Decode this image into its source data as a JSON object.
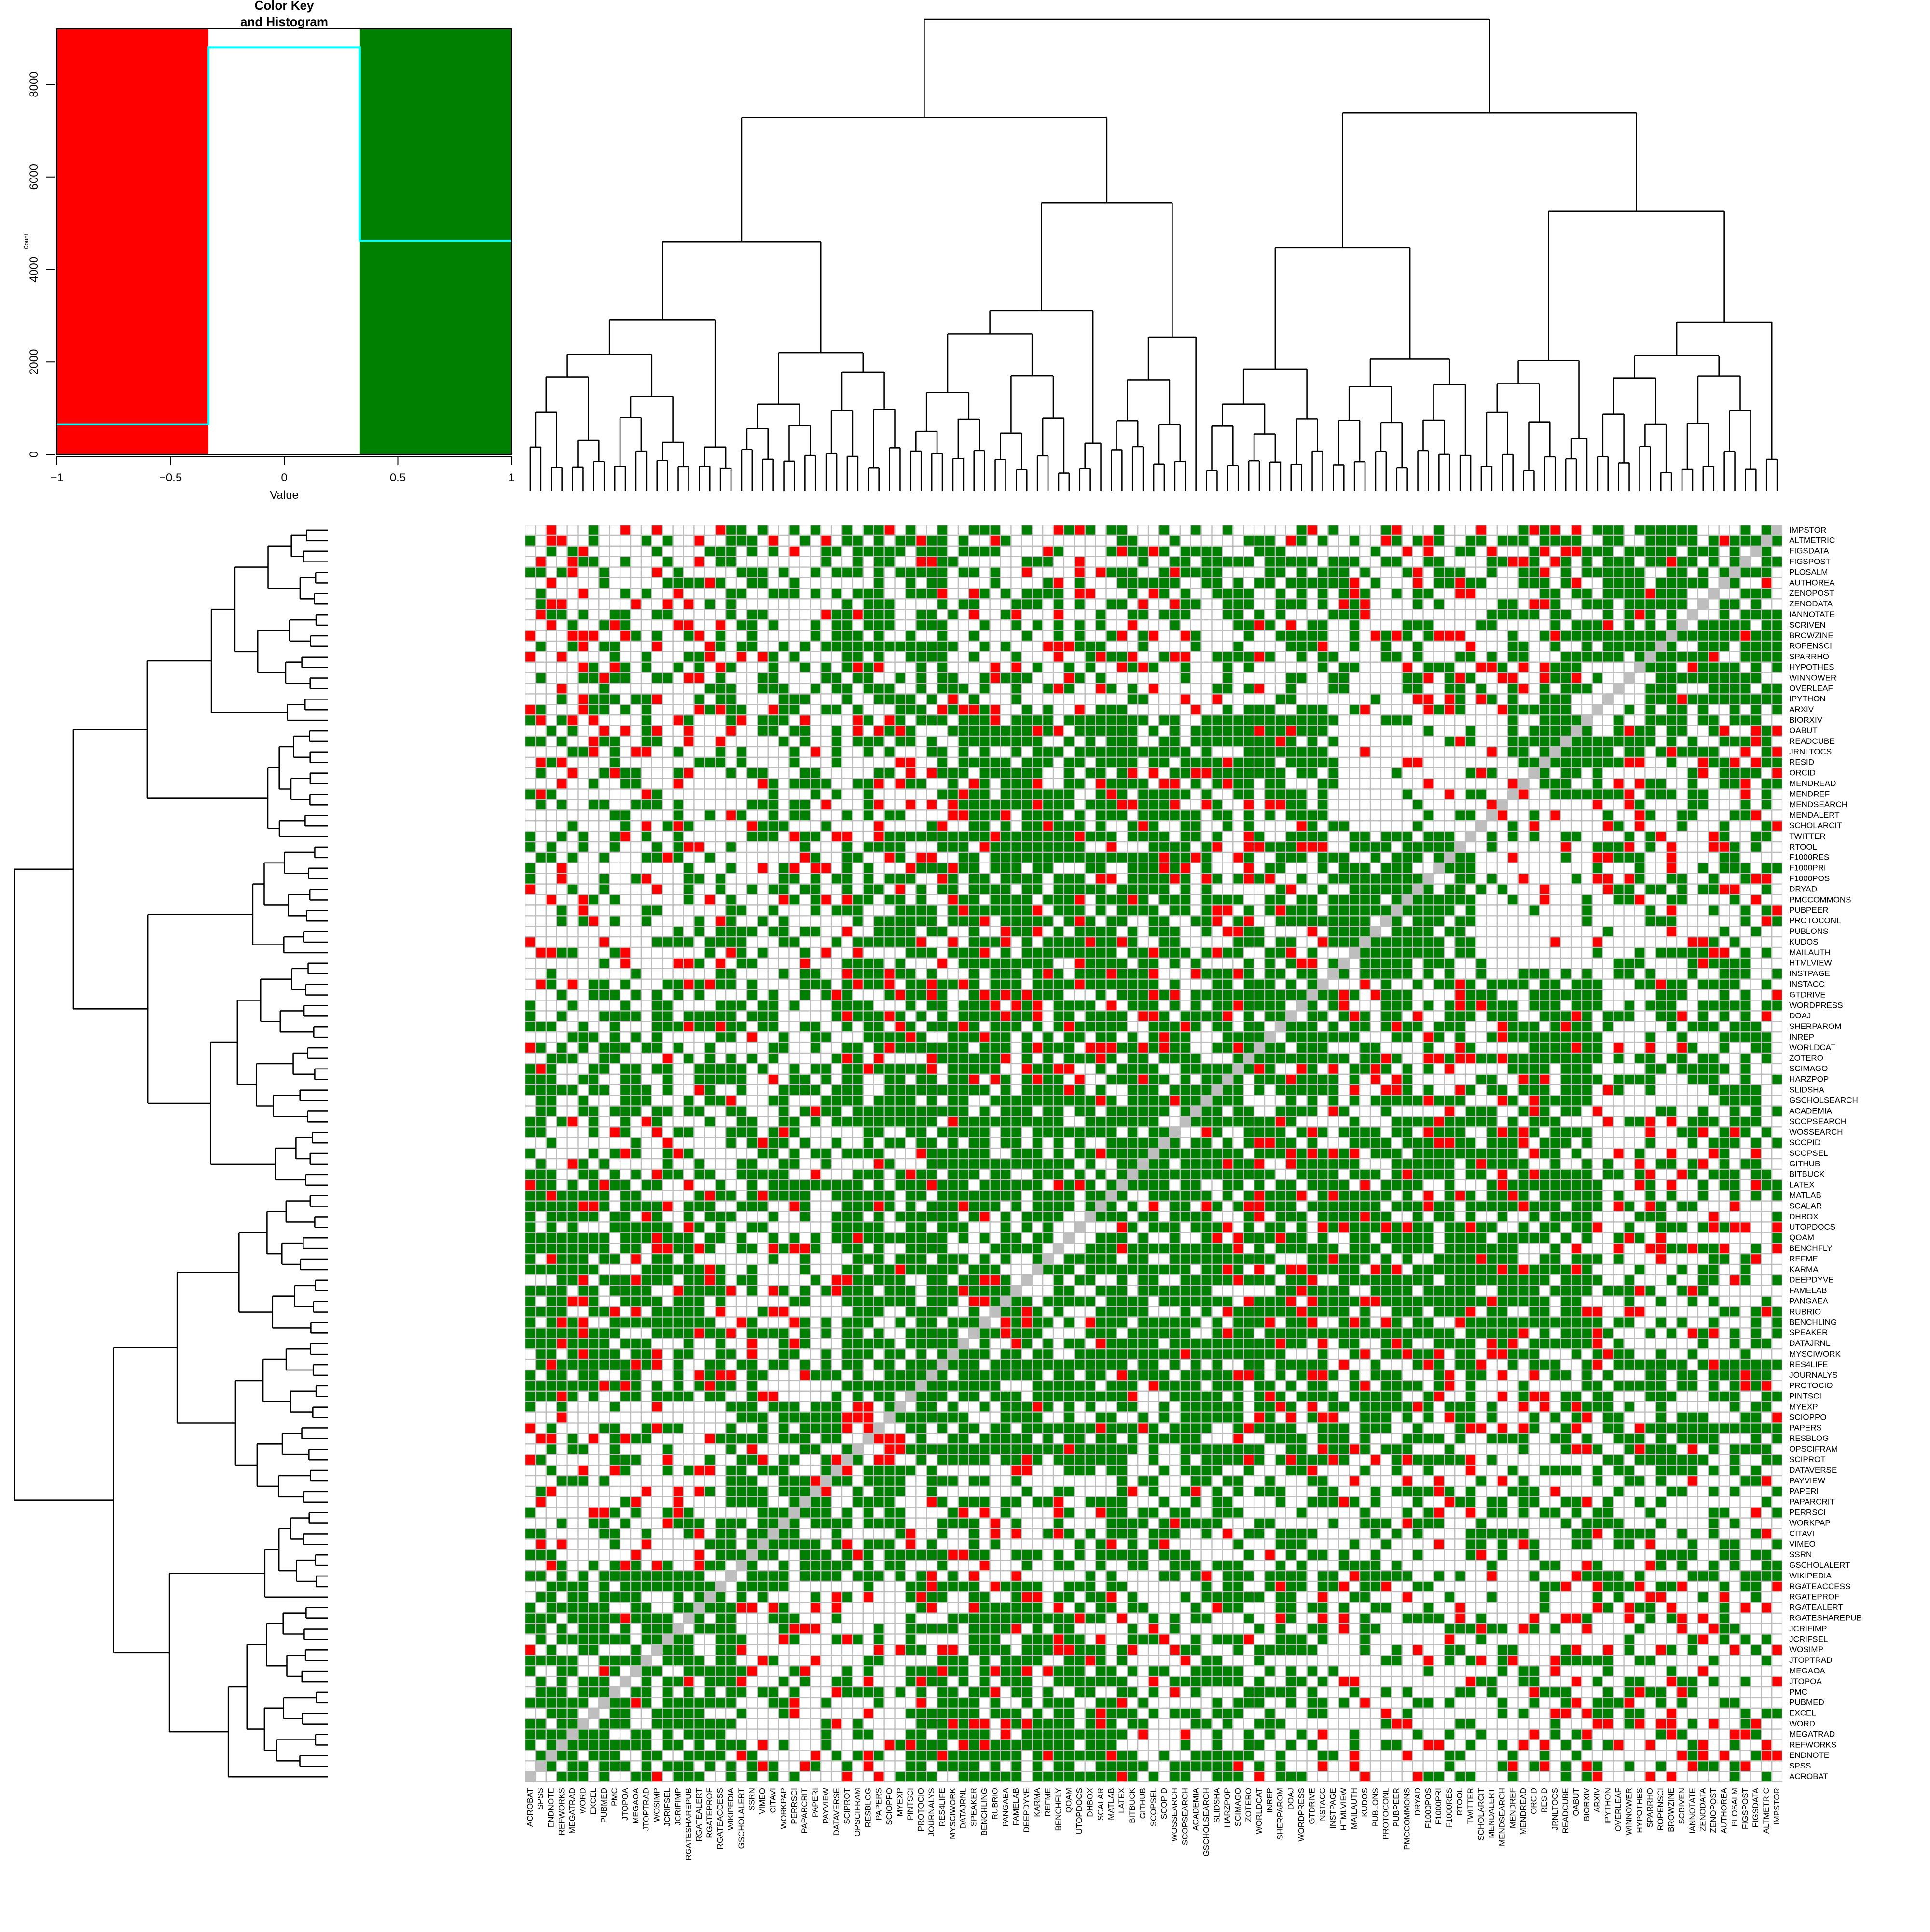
{
  "colors": {
    "negative": "#ff0000",
    "neutral": "#ffffff",
    "positive": "#008000",
    "diagonal": "#bebebe",
    "grid": "#bebebe",
    "histogram_line": "#00ffff",
    "dendrogram": "#000000"
  },
  "chart_data": [
    {
      "type": "bar",
      "title": "Color Key\nand Histogram",
      "xlabel": "Value",
      "ylabel": "Count",
      "xlim": [
        -1,
        1
      ],
      "ylim": [
        0,
        9200
      ],
      "x_ticks": [
        "-1",
        "-0.5",
        "0",
        "0.5",
        "1"
      ],
      "y_ticks": [
        "0",
        "2000",
        "4000",
        "6000",
        "8000"
      ],
      "color_bands": [
        {
          "from": -1,
          "to": -0.333,
          "color": "#ff0000"
        },
        {
          "from": -0.333,
          "to": 0.333,
          "color": "#ffffff"
        },
        {
          "from": 0.333,
          "to": 1,
          "color": "#008000"
        }
      ],
      "histogram": [
        {
          "from": -1,
          "to": -0.333,
          "count": 650
        },
        {
          "from": -0.333,
          "to": 0.333,
          "count": 8800
        },
        {
          "from": 0.333,
          "to": 1,
          "count": 4620
        }
      ]
    },
    {
      "type": "heatmap",
      "columns": [
        "ACROBAT",
        "SPSS",
        "ENDNOTE",
        "REFWORKS",
        "MEGATRAD",
        "WORD",
        "EXCEL",
        "PUBMED",
        "PMC",
        "JTOPOA",
        "MEGAOA",
        "JTOPTRAD",
        "WOSIMP",
        "JCRIFSEL",
        "JCRIFIMP",
        "RGATESHAREPUB",
        "RGATEALERT",
        "RGATEPROF",
        "RGATEACCESS",
        "WIKIPEDIA",
        "GSCHOLALERT",
        "SSRN",
        "VIMEO",
        "CITAVI",
        "WORKPAP",
        "PERRSCI",
        "PAPARCRIT",
        "PAPERI",
        "PAYVIEW",
        "DATAVERSE",
        "SCIPROT",
        "OPSCIFRAM",
        "RESBLOG",
        "PAPERS",
        "SCIOPPO",
        "MYEXP",
        "PINTSCI",
        "PROTOCIO",
        "JOURNALYS",
        "RES4LIFE",
        "MYSCIWORK",
        "DATAJRNL",
        "SPEAKER",
        "BENCHLING",
        "RUBRIO",
        "PANGAEA",
        "FAMELAB",
        "DEEPDYVE",
        "KARMA",
        "REFME",
        "BENCHFLY",
        "QOAM",
        "UTOPDOCS",
        "DHBOX",
        "SCALAR",
        "MATLAB",
        "LATEX",
        "BITBUCK",
        "GITHUB",
        "SCOPSEL",
        "SCOPID",
        "WOSSEARCH",
        "SCOPSEARCH",
        "ACADEMIA",
        "GSCHOLSEARCH",
        "SLIDSHA",
        "HARZPOP",
        "SCIMAGO",
        "ZOTERO",
        "WORLDCAT",
        "INREP",
        "SHERPAROM",
        "DOAJ",
        "WORDPRESS",
        "GTDRIVE",
        "INSTACC",
        "INSTPAGE",
        "HTMLVIEW",
        "MAILAUTH",
        "KUDOS",
        "PUBLONS",
        "PROTOCONL",
        "PUBPEER",
        "PMCCOMMONS",
        "DRYAD",
        "F1000POS",
        "F1000PRI",
        "F1000RES",
        "RTOOL",
        "TWITTER",
        "SCHOLARCIT",
        "MENDALERT",
        "MENDSEARCH",
        "MENDREF",
        "MENDREAD",
        "ORCID",
        "RESID",
        "JRNLTOCS",
        "READCUBE",
        "OABUT",
        "BIORXIV",
        "ARXIV",
        "IPYTHON",
        "OVERLEAF",
        "WINNOWER",
        "HYPOTHES",
        "SPARRHO",
        "ROPENSCI",
        "BROWZINE",
        "SCRIVEN",
        "IANNOTATE",
        "ZENODATA",
        "ZENOPOST",
        "AUTHOREA",
        "PLOSALM",
        "FIGSPOST",
        "FIGSDATA",
        "ALTMETRIC",
        "IMPSTOR"
      ],
      "rows": [
        "IMPSTOR",
        "ALTMETRIC",
        "FIGSDATA",
        "FIGSPOST",
        "PLOSALM",
        "AUTHOREA",
        "ZENOPOST",
        "ZENODATA",
        "IANNOTATE",
        "SCRIVEN",
        "BROWZINE",
        "ROPENSCI",
        "SPARRHO",
        "HYPOTHES",
        "WINNOWER",
        "OVERLEAF",
        "IPYTHON",
        "ARXIV",
        "BIORXIV",
        "OABUT",
        "READCUBE",
        "JRNLTOCS",
        "RESID",
        "ORCID",
        "MENDREAD",
        "MENDREF",
        "MENDSEARCH",
        "MENDALERT",
        "SCHOLARCIT",
        "TWITTER",
        "RTOOL",
        "F1000RES",
        "F1000PRI",
        "F1000POS",
        "DRYAD",
        "PMCCOMMONS",
        "PUBPEER",
        "PROTOCONL",
        "PUBLONS",
        "KUDOS",
        "MAILAUTH",
        "HTMLVIEW",
        "INSTPAGE",
        "INSTACC",
        "GTDRIVE",
        "WORDPRESS",
        "DOAJ",
        "SHERPAROM",
        "INREP",
        "WORLDCAT",
        "ZOTERO",
        "SCIMAGO",
        "HARZPOP",
        "SLIDSHA",
        "GSCHOLSEARCH",
        "ACADEMIA",
        "SCOPSEARCH",
        "WOSSEARCH",
        "SCOPID",
        "SCOPSEL",
        "GITHUB",
        "BITBUCK",
        "LATEX",
        "MATLAB",
        "SCALAR",
        "DHBOX",
        "UTOPDOCS",
        "QOAM",
        "BENCHFLY",
        "REFME",
        "KARMA",
        "DEEPDYVE",
        "FAMELAB",
        "PANGAEA",
        "RUBRIO",
        "BENCHLING",
        "SPEAKER",
        "DATAJRNL",
        "MYSCIWORK",
        "RES4LIFE",
        "JOURNALYS",
        "PROTOCIO",
        "PINTSCI",
        "MYEXP",
        "SCIOPPO",
        "PAPERS",
        "RESBLOG",
        "OPSCIFRAM",
        "SCIPROT",
        "DATAVERSE",
        "PAYVIEW",
        "PAPERI",
        "PAPARCRIT",
        "PERRSCI",
        "WORKPAP",
        "CITAVI",
        "VIMEO",
        "SSRN",
        "GSCHOLALERT",
        "WIKIPEDIA",
        "RGATEACCESS",
        "RGATEPROF",
        "RGATEALERT",
        "RGATESHAREPUB",
        "JCRIFIMP",
        "JCRIFSEL",
        "WOSIMP",
        "JTOPTRAD",
        "MEGAOA",
        "JTOPOA",
        "PMC",
        "PUBMED",
        "EXCEL",
        "WORD",
        "MEGATRAD",
        "REFWORKS",
        "ENDNOTE",
        "SPSS",
        "ACROBAT"
      ],
      "column_groups": [
        20,
        36,
        55,
        64,
        76,
        90,
        101,
        122
      ],
      "row_groups": [
        19,
        30,
        41,
        63,
        77,
        93,
        102,
        122
      ],
      "values": "correlation matrix, encoded as -1 (red), 0 (white), 1 (green); symmetric with grey diagonal"
    }
  ]
}
